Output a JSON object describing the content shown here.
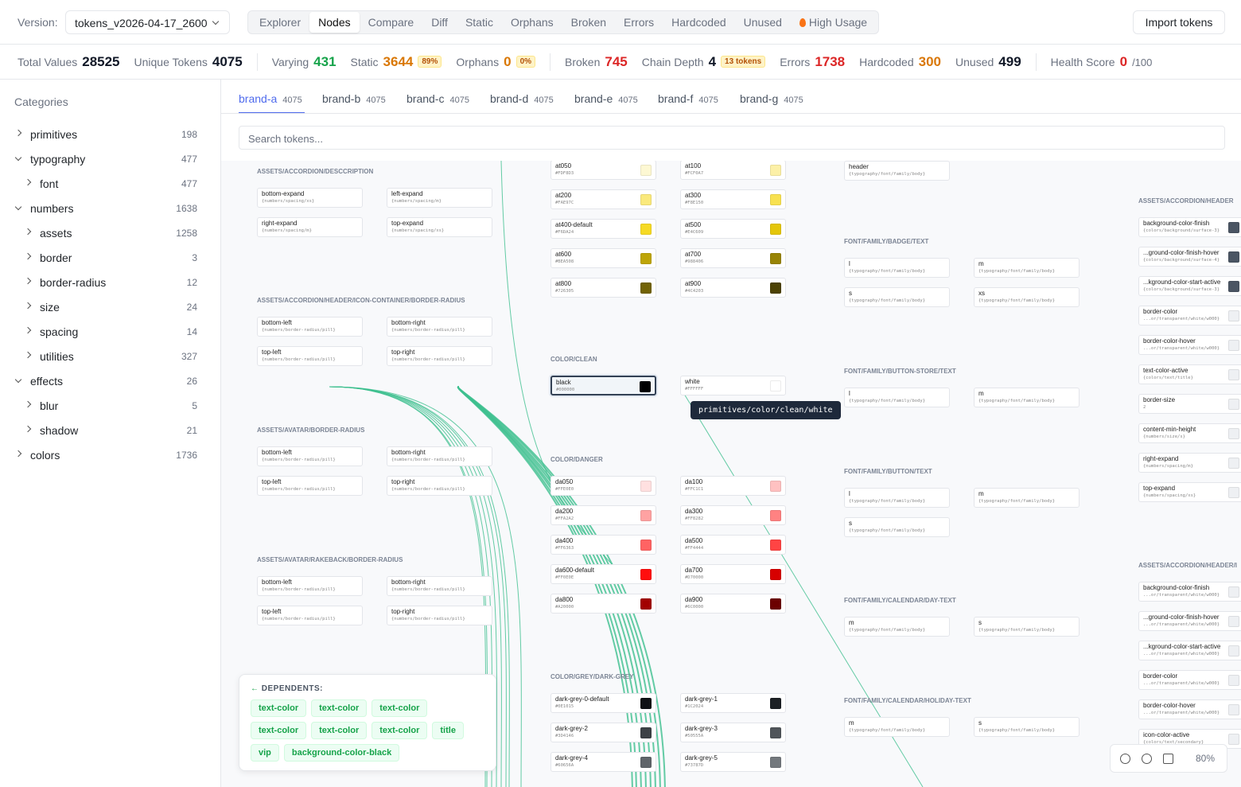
{
  "header": {
    "version_label": "Version:",
    "version": "tokens_v2026-04-17_2600",
    "tabs": [
      "Explorer",
      "Nodes",
      "Compare",
      "Diff",
      "Static",
      "Orphans",
      "Broken",
      "Errors",
      "Hardcoded",
      "Unused",
      "High Usage"
    ],
    "active_tab": "Nodes",
    "import_button": "Import tokens"
  },
  "stats": [
    {
      "label": "Total Values",
      "value": "28525",
      "color": "#111827"
    },
    {
      "label": "Unique Tokens",
      "value": "4075",
      "color": "#111827"
    },
    {
      "label": "Varying",
      "value": "431",
      "color": "#16a34a"
    },
    {
      "label": "Static",
      "value": "3644",
      "badge": "89%",
      "color": "#d97706"
    },
    {
      "label": "Orphans",
      "value": "0",
      "badge": "0%",
      "color": "#d97706"
    },
    {
      "label": "Broken",
      "value": "745",
      "color": "#dc2626"
    },
    {
      "label": "Chain Depth",
      "value": "4",
      "badge": "13 tokens",
      "color": "#111827"
    },
    {
      "label": "Errors",
      "value": "1738",
      "color": "#dc2626"
    },
    {
      "label": "Hardcoded",
      "value": "300",
      "color": "#d97706"
    },
    {
      "label": "Unused",
      "value": "499",
      "color": "#111827"
    },
    {
      "label": "Health Score",
      "value": "0",
      "suffix": "/100",
      "color": "#dc2626"
    }
  ],
  "sidebar": {
    "title": "Categories",
    "items": [
      {
        "label": "primitives",
        "count": "198",
        "level": 0,
        "expanded": false
      },
      {
        "label": "typography",
        "count": "477",
        "level": 0,
        "expanded": true
      },
      {
        "label": "font",
        "count": "477",
        "level": 1,
        "expanded": false
      },
      {
        "label": "numbers",
        "count": "1638",
        "level": 0,
        "expanded": true
      },
      {
        "label": "assets",
        "count": "1258",
        "level": 1,
        "expanded": false
      },
      {
        "label": "border",
        "count": "3",
        "level": 1,
        "expanded": false
      },
      {
        "label": "border-radius",
        "count": "12",
        "level": 1,
        "expanded": false
      },
      {
        "label": "size",
        "count": "24",
        "level": 1,
        "expanded": false
      },
      {
        "label": "spacing",
        "count": "14",
        "level": 1,
        "expanded": false
      },
      {
        "label": "utilities",
        "count": "327",
        "level": 1,
        "expanded": false
      },
      {
        "label": "effects",
        "count": "26",
        "level": 0,
        "expanded": true
      },
      {
        "label": "blur",
        "count": "5",
        "level": 1,
        "expanded": false
      },
      {
        "label": "shadow",
        "count": "21",
        "level": 1,
        "expanded": false
      },
      {
        "label": "colors",
        "count": "1736",
        "level": 0,
        "expanded": false
      }
    ]
  },
  "brands": [
    {
      "name": "brand-a",
      "count": "4075"
    },
    {
      "name": "brand-b",
      "count": "4075"
    },
    {
      "name": "brand-c",
      "count": "4075"
    },
    {
      "name": "brand-d",
      "count": "4075"
    },
    {
      "name": "brand-e",
      "count": "4075"
    },
    {
      "name": "brand-f",
      "count": "4075"
    },
    {
      "name": "brand-g",
      "count": "4075"
    }
  ],
  "search_placeholder": "Search tokens...",
  "groups": [
    {
      "title": "ASSETS/ACCORDION/DESCCRIPTION",
      "nodes": [
        {
          "name": "bottom-expand",
          "ref": "{numbers/spacing/xs}"
        },
        {
          "name": "left-expand",
          "ref": "{numbers/spacing/m}"
        },
        {
          "name": "right-expand",
          "ref": "{numbers/spacing/m}"
        },
        {
          "name": "top-expand",
          "ref": "{numbers/spacing/xs}"
        }
      ]
    },
    {
      "title": "ASSETS/ACCORDION/HEADER/ICON-CONTAINER/BORDER-RADIUS",
      "nodes": [
        {
          "name": "bottom-left",
          "ref": "{numbers/border-radius/pill}"
        },
        {
          "name": "bottom-right",
          "ref": "{numbers/border-radius/pill}"
        },
        {
          "name": "top-left",
          "ref": "{numbers/border-radius/pill}"
        },
        {
          "name": "top-right",
          "ref": "{numbers/border-radius/pill}"
        }
      ]
    },
    {
      "title": "ASSETS/AVATAR/BORDER-RADIUS",
      "nodes": [
        {
          "name": "bottom-left",
          "ref": "{numbers/border-radius/pill}"
        },
        {
          "name": "bottom-right",
          "ref": "{numbers/border-radius/pill}"
        },
        {
          "name": "top-left",
          "ref": "{numbers/border-radius/pill}"
        },
        {
          "name": "top-right",
          "ref": "{numbers/border-radius/pill}"
        }
      ]
    },
    {
      "title": "ASSETS/AVATAR/RAKEBACK/BORDER-RADIUS",
      "nodes": [
        {
          "name": "bottom-left",
          "ref": "{numbers/border-radius/pill}"
        },
        {
          "name": "bottom-right",
          "ref": "{numbers/border-radius/pill}"
        },
        {
          "name": "top-left",
          "ref": "{numbers/border-radius/pill}"
        },
        {
          "name": "top-right",
          "ref": "{numbers/border-radius/pill}"
        }
      ]
    },
    {
      "nodes": [
        {
          "name": "at050",
          "ref": "#FDF8D3"
        },
        {
          "name": "at100",
          "ref": "#FCF0A7"
        },
        {
          "name": "at200",
          "ref": "#FAE97C"
        },
        {
          "name": "at300",
          "ref": "#F8E150"
        },
        {
          "name": "at400-default",
          "ref": "#F6DA24"
        },
        {
          "name": "at500",
          "ref": "#E4C609"
        },
        {
          "name": "at600",
          "ref": "#BEA508"
        },
        {
          "name": "at700",
          "ref": "#988406"
        },
        {
          "name": "at800",
          "ref": "#726305"
        },
        {
          "name": "at900",
          "ref": "#4C4203"
        }
      ]
    },
    {
      "title": "COLOR/CLEAN",
      "nodes": [
        {
          "name": "black",
          "ref": "#000000"
        },
        {
          "name": "white",
          "ref": "#FFFFFF"
        }
      ]
    },
    {
      "title": "COLOR/DANGER",
      "nodes": [
        {
          "name": "da050",
          "ref": "#FFE0E0"
        },
        {
          "name": "da100",
          "ref": "#FFC1C1"
        },
        {
          "name": "da200",
          "ref": "#FFA2A2"
        },
        {
          "name": "da300",
          "ref": "#FF8282"
        },
        {
          "name": "da400",
          "ref": "#FF6363"
        },
        {
          "name": "da500",
          "ref": "#FF4444"
        },
        {
          "name": "da600-default",
          "ref": "#FF0E0E"
        },
        {
          "name": "da700",
          "ref": "#D70000"
        },
        {
          "name": "da800",
          "ref": "#A20000"
        },
        {
          "name": "da900",
          "ref": "#6C0000"
        }
      ]
    },
    {
      "title": "COLOR/GREY/DARK-GREY",
      "nodes": [
        {
          "name": "dark-grey-0-default",
          "ref": "#0E1015"
        },
        {
          "name": "dark-grey-1",
          "ref": "#1C2024"
        },
        {
          "name": "dark-grey-2",
          "ref": "#3D4146"
        },
        {
          "name": "dark-grey-3",
          "ref": "#50555A"
        },
        {
          "name": "dark-grey-4",
          "ref": "#60656A"
        },
        {
          "name": "dark-grey-5",
          "ref": "#73787D"
        }
      ]
    },
    {
      "nodes": [
        {
          "name": "header",
          "ref": "{typography/font/family/body}"
        }
      ]
    },
    {
      "title": "FONT/FAMILY/BADGE/TEXT",
      "nodes": [
        {
          "name": "l",
          "ref": "{typography/font/family/body}"
        },
        {
          "name": "m",
          "ref": "{typography/font/family/body}"
        },
        {
          "name": "s",
          "ref": "{typography/font/family/body}"
        },
        {
          "name": "xs",
          "ref": "{typography/font/family/body}"
        }
      ]
    },
    {
      "title": "FONT/FAMILY/BUTTON-STORE/TEXT",
      "nodes": [
        {
          "name": "l",
          "ref": "{typography/font/family/body}"
        },
        {
          "name": "m",
          "ref": "{typography/font/family/body}"
        }
      ]
    },
    {
      "title": "FONT/FAMILY/BUTTON/TEXT",
      "nodes": [
        {
          "name": "l",
          "ref": "{typography/font/family/body}"
        },
        {
          "name": "m",
          "ref": "{typography/font/family/body}"
        },
        {
          "name": "s",
          "ref": "{typography/font/family/body}"
        }
      ]
    },
    {
      "title": "FONT/FAMILY/CALENDAR/DAY-TEXT",
      "nodes": [
        {
          "name": "m",
          "ref": "{typography/font/family/body}"
        },
        {
          "name": "s",
          "ref": "{typography/font/family/body}"
        }
      ]
    },
    {
      "title": "FONT/FAMILY/CALENDAR/HOLIDAY-TEXT",
      "nodes": [
        {
          "name": "m",
          "ref": "{typography/font/family/body}"
        },
        {
          "name": "s",
          "ref": "{typography/font/family/body}"
        }
      ]
    },
    {
      "title": "ASSETS/ACCORDION/HEADER",
      "nodes": [
        {
          "name": "background-color-finish",
          "ref": "{colors/background/surface-3}"
        },
        {
          "name": "...ground-color-finish-hover",
          "ref": "{colors/background/surface-4}"
        },
        {
          "name": "...kground-color-start-active",
          "ref": "{colors/background/surface-3}"
        },
        {
          "name": "border-color",
          "ref": "...or/transparent/white/w000}"
        },
        {
          "name": "border-color-hover",
          "ref": "...or/transparent/white/w000}"
        },
        {
          "name": "text-color-active",
          "ref": "{colors/text/title}"
        },
        {
          "name": "border-size",
          "ref": "2"
        },
        {
          "name": "content-min-height",
          "ref": "{numbers/size/s}"
        },
        {
          "name": "right-expand",
          "ref": "{numbers/spacing/m}"
        },
        {
          "name": "top-expand",
          "ref": "{numbers/spacing/xs}"
        }
      ]
    },
    {
      "title": "ASSETS/ACCORDION/HEADER/I",
      "nodes": [
        {
          "name": "background-color-finish",
          "ref": "...or/transparent/white/w000}"
        },
        {
          "name": "...ground-color-finish-hover",
          "ref": "...or/transparent/white/w000}"
        },
        {
          "name": "...kground-color-start-active",
          "ref": "...or/transparent/white/w000}"
        },
        {
          "name": "border-color",
          "ref": "...or/transparent/white/w000}"
        },
        {
          "name": "border-color-hover",
          "ref": "...or/transparent/white/w000}"
        },
        {
          "name": "icon-color-active",
          "ref": "{colors/text/secondary}"
        }
      ]
    }
  ],
  "tooltip": "primitives/color/clean/white",
  "dependents": {
    "title": "DEPENDENTS:",
    "chips": [
      "text-color",
      "text-color",
      "text-color",
      "text-color",
      "text-color",
      "text-color",
      "title",
      "vip",
      "background-color-black"
    ]
  },
  "zoom": "80%"
}
